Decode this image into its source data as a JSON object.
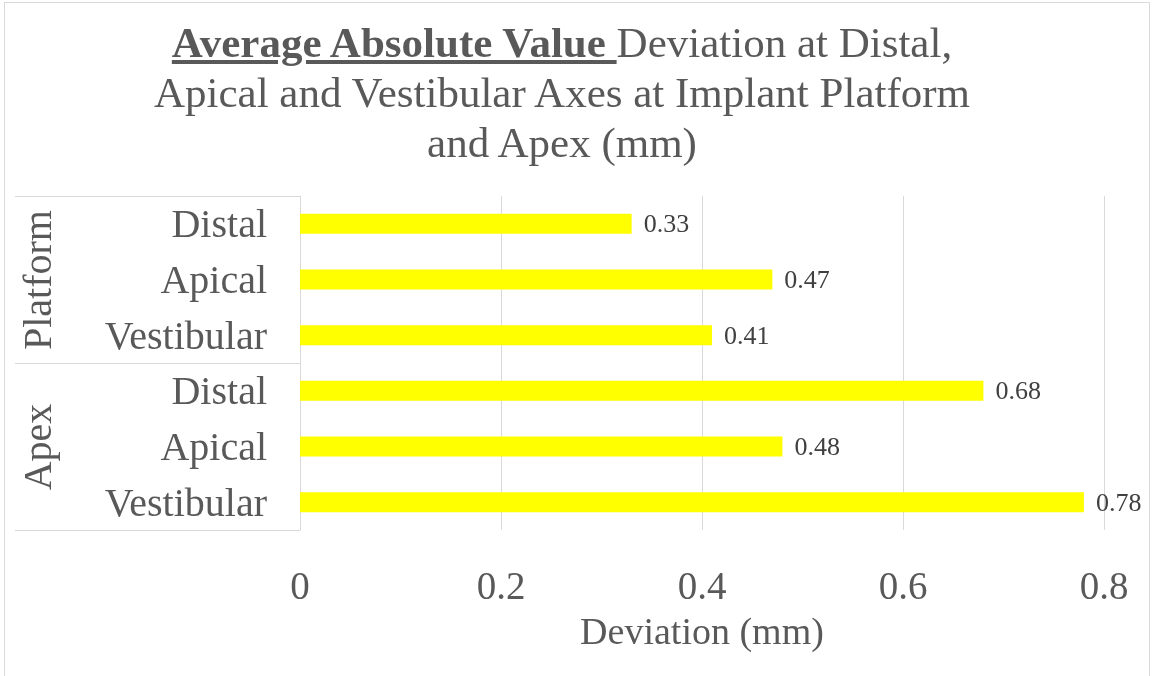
{
  "chart_data": {
    "type": "bar",
    "orientation": "horizontal",
    "title": "Average Absolute Value Deviation at Distal, Apical and Vestibular Axes at Implant Platform and Apex (mm)",
    "xlabel": "Deviation (mm)",
    "categories": [
      "Distal",
      "Apical",
      "Vestibular",
      "Distal",
      "Apical",
      "Vestibular"
    ],
    "values": [
      0.33,
      0.47,
      0.41,
      0.68,
      0.48,
      0.78
    ],
    "color": "#ffff00",
    "annotations": [
      "Platform",
      "Apex"
    ],
    "xlim": [
      0,
      0.8
    ],
    "xticks": [
      0,
      0.2,
      0.4,
      0.6,
      0.8
    ],
    "grid": "x",
    "data_labels": true
  }
}
